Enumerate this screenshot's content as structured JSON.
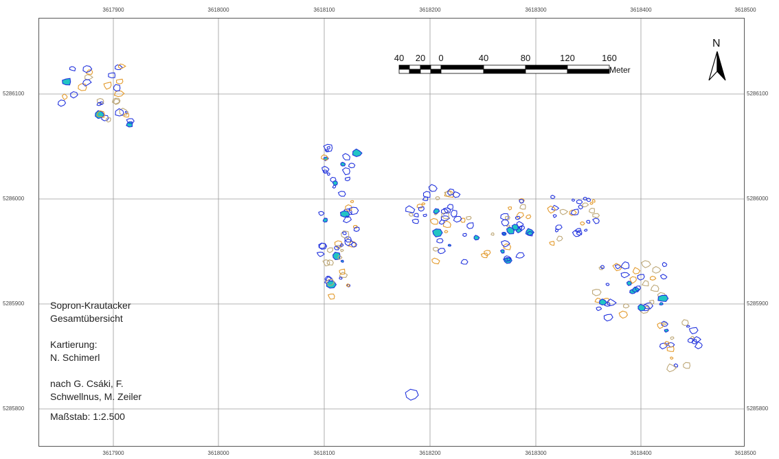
{
  "map": {
    "x_ticks": [
      "3617900",
      "3618000",
      "3618100",
      "3618200",
      "3618300",
      "3618400",
      "3618500"
    ],
    "y_ticks": [
      "5286100",
      "5286000",
      "5285900",
      "5285800"
    ]
  },
  "legend": {
    "title_line1": "Sopron-Krautacker",
    "title_line2": "Gesamtübersicht",
    "mapping_label": "Kartierung:",
    "mapping_author": "N. Schimerl",
    "after_line1": "nach G. Csáki, F.",
    "after_line2": "Schwellnus, M. Zeiler",
    "scale": "Maßstab: 1:2.500"
  },
  "scalebar": {
    "labels": [
      "40",
      "20",
      "0",
      "40",
      "80",
      "120",
      "160"
    ],
    "unit": "Meter"
  },
  "north_arrow": {
    "label": "N",
    "icon": "north-arrow-icon"
  },
  "colors": {
    "feature_blue": "#2233dd",
    "feature_cyan": "#22c4c4",
    "feature_orange": "#e39a2c",
    "feature_tan": "#bda777",
    "grid": "#9a9a9a"
  }
}
